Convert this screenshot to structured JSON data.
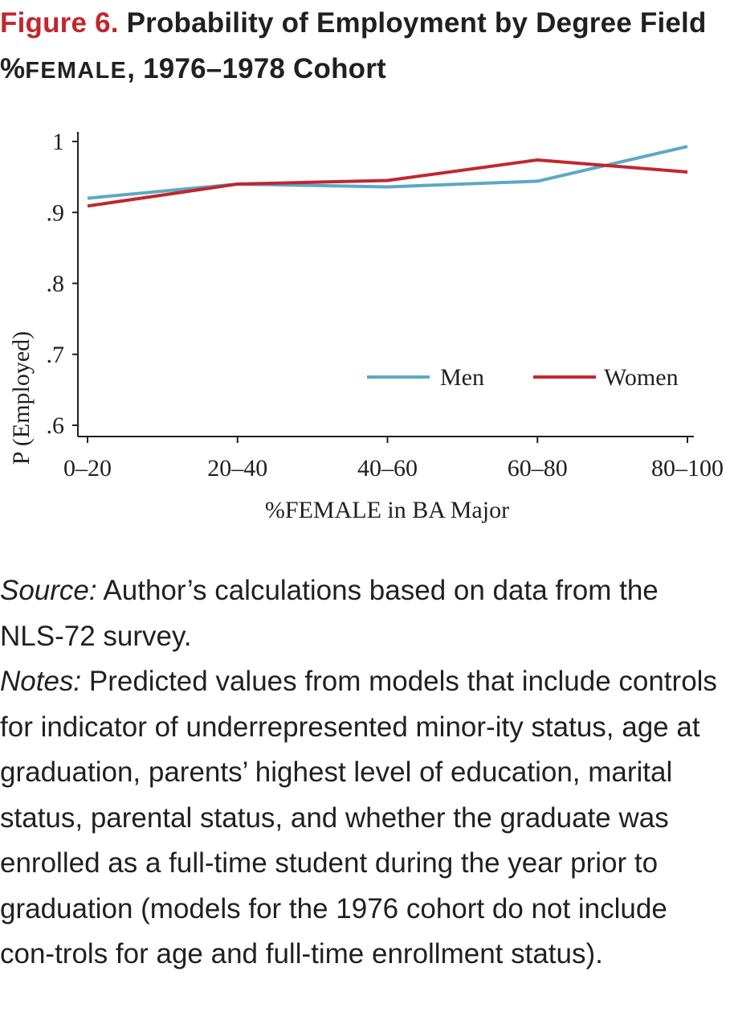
{
  "figure": {
    "label": "Figure 6.",
    "title_part1": "Probability of Employment by Degree Field %",
    "title_smallcaps": "FEMALE",
    "title_part2": ", 1976–1978 Cohort"
  },
  "chart_data": {
    "type": "line",
    "categories": [
      "0–20",
      "20–40",
      "40–60",
      "60–80",
      "80–100"
    ],
    "series": [
      {
        "name": "Men",
        "color": "#5ba9c4",
        "values": [
          0.92,
          0.94,
          0.936,
          0.944,
          0.993
        ]
      },
      {
        "name": "Women",
        "color": "#c1272d",
        "values": [
          0.909,
          0.94,
          0.945,
          0.974,
          0.957
        ]
      }
    ],
    "ylim": [
      0.6,
      1.0
    ],
    "yticks": [
      1.0,
      0.9,
      0.8,
      0.7,
      0.6
    ],
    "ytick_labels": [
      "1",
      ".9",
      ".8",
      ".7",
      ".6"
    ],
    "ylabel": "P (Employed)",
    "xlabel": "%FEMALE in BA Major",
    "legend": "bottom-right",
    "grid": false
  },
  "caption": {
    "source_label": "Source:",
    "source_text": " Author’s calculations based on data from the NLS-72 survey.",
    "notes_label": "Notes:",
    "notes_text": " Predicted values from models that include controls for indicator of underrepresented minor-ity status, age at graduation, parents’ highest level of education, marital status, parental status, and whether the graduate was enrolled as a full-time student during the year prior to graduation (models for the 1976 cohort do not include con-trols for age and full-time enrollment status)."
  }
}
